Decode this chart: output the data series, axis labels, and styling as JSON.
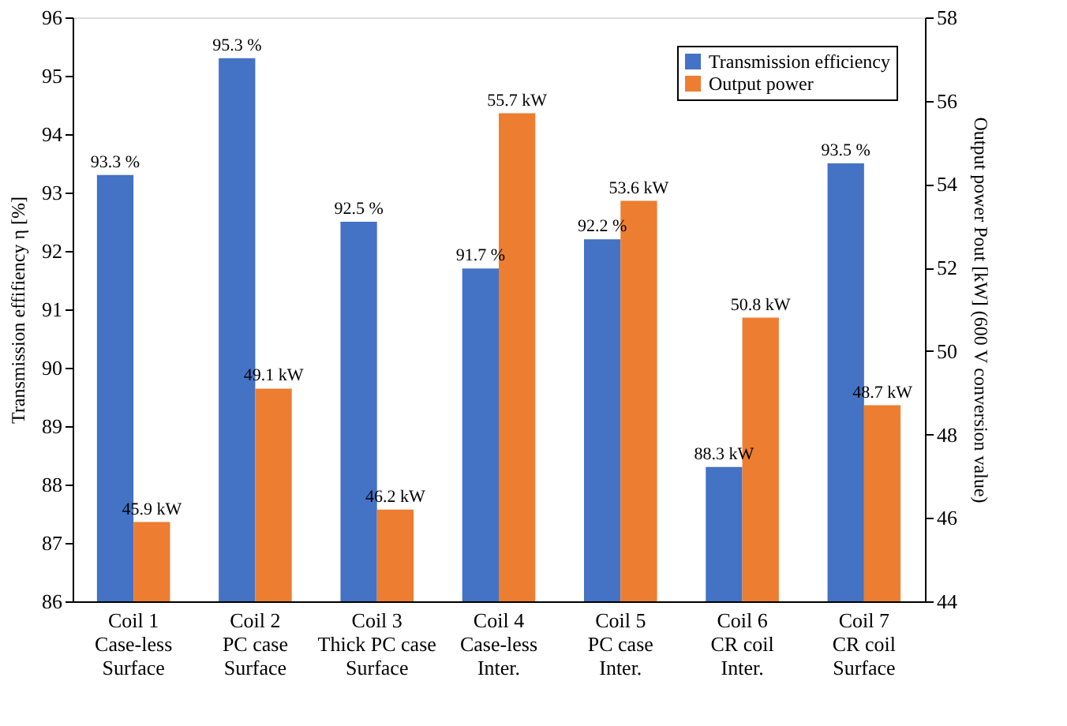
{
  "chart_data": {
    "type": "bar",
    "categories": [
      "Coil 1\nCase-less\nSurface",
      "Coil 2\nPC case\nSurface",
      "Coil 3\nThick PC case\nSurface",
      "Coil 4\nCase-less\nInter.",
      "Coil 5\nPC case\nInter.",
      "Coil 6\nCR coil\nInter.",
      "Coil 7\nCR coil\nSurface"
    ],
    "ylabel": "Transmission effifiency  η [%]",
    "y2label": "Output power Pout [kW] (600 V conversion value)",
    "ylim": [
      86,
      96
    ],
    "yticks": [
      86,
      87,
      88,
      89,
      90,
      91,
      92,
      93,
      94,
      95,
      96
    ],
    "y2lim": [
      44,
      58
    ],
    "y2ticks": [
      44,
      46,
      48,
      50,
      52,
      54,
      56,
      58
    ],
    "series": [
      {
        "name": "Transmission efficiency",
        "color": "#4472c4",
        "values": [
          93.3,
          95.3,
          92.5,
          91.7,
          92.2,
          88.3,
          93.5
        ],
        "value_labels": [
          "93.3 %",
          "95.3 %",
          "92.5 %",
          "91.7 %",
          "92.2 %",
          "88.3 kW",
          "93.5 %"
        ]
      },
      {
        "name": "Output power",
        "color": "#ed7d31",
        "axis": "y2",
        "values": [
          45.9,
          49.1,
          46.2,
          55.7,
          53.6,
          50.8,
          48.7
        ],
        "value_labels": [
          "45.9 kW",
          "49.1 kW",
          "46.2 kW",
          "55.7 kW",
          "53.6 kW",
          "50.8 kW",
          "48.7 kW"
        ]
      }
    ],
    "legend": "top right",
    "grid": false
  }
}
